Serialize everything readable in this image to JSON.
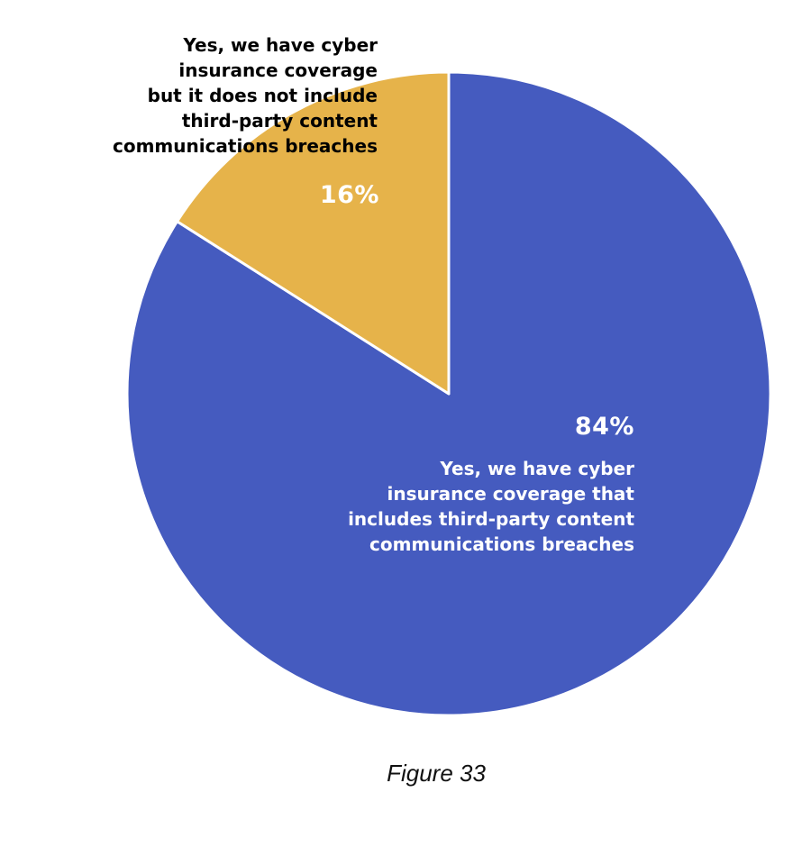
{
  "chart_data": {
    "type": "pie",
    "start_angle_deg": 0,
    "direction": "clockwise",
    "slices": [
      {
        "label": "Yes, we have cyber\ninsurance coverage that\nincludes third-party content\ncommunications breaches",
        "value": 84,
        "display": "84%",
        "color": "#455BBF"
      },
      {
        "label": "Yes, we have cyber\ninsurance coverage\nbut it does not include\nthird-party content\ncommunications breaches",
        "value": 16,
        "display": "16%",
        "color": "#E6B34A"
      }
    ],
    "separator_color": "#ffffff"
  },
  "caption": "Figure 33"
}
